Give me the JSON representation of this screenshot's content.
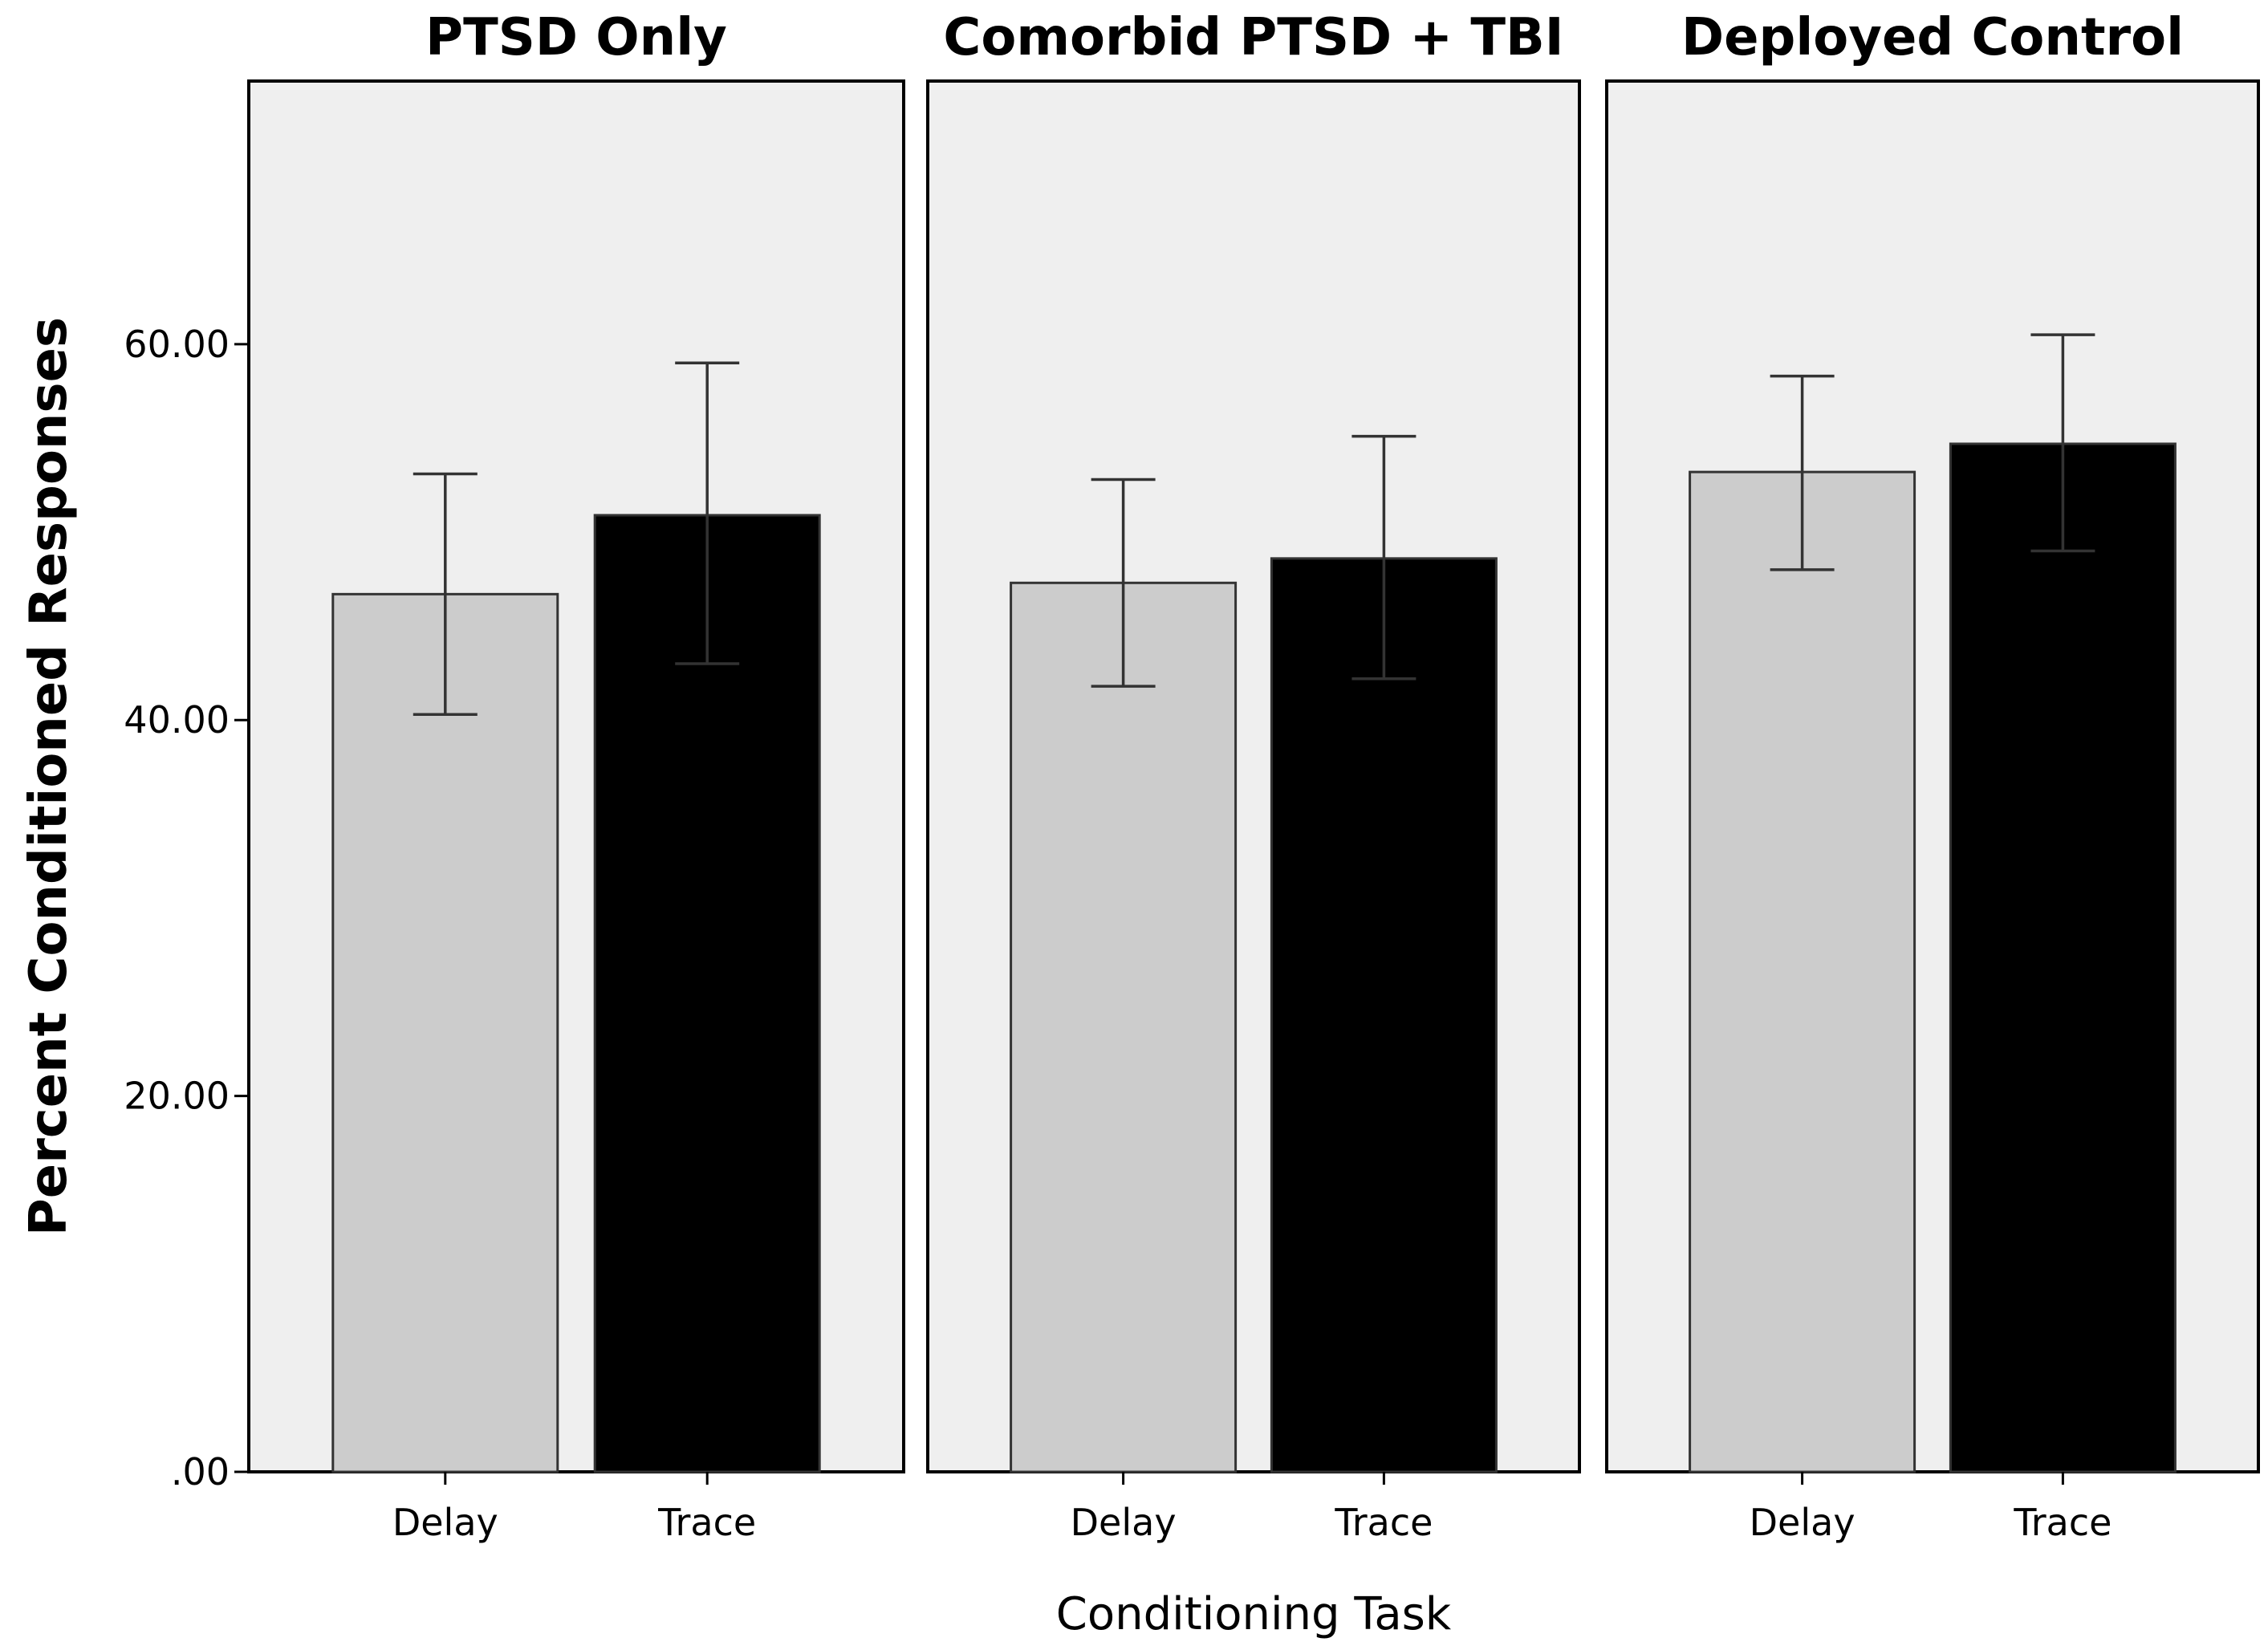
{
  "chart_data": {
    "type": "bar",
    "ylabel": "Percent Conditioned Responses",
    "xlabel": "Conditioning Task",
    "ylim": [
      0,
      74
    ],
    "yticks": [
      0,
      20,
      40,
      60
    ],
    "ytick_labels": [
      ".00",
      "20.00",
      "40.00",
      "60.00"
    ],
    "grid": false,
    "series_colors": {
      "Delay": "#cccccc",
      "Trace": "#000000"
    },
    "panel_background": "#efefef",
    "panels": [
      {
        "title": "PTSD Only",
        "categories": [
          "Delay",
          "Trace"
        ],
        "values": [
          46.7,
          50.9
        ],
        "error_low": [
          40.3,
          43.0
        ],
        "error_high": [
          53.1,
          59.0
        ]
      },
      {
        "title": "Comorbid PTSD + TBI",
        "categories": [
          "Delay",
          "Trace"
        ],
        "values": [
          47.3,
          48.6
        ],
        "error_low": [
          41.8,
          42.2
        ],
        "error_high": [
          52.8,
          55.1
        ]
      },
      {
        "title": "Deployed Control",
        "categories": [
          "Delay",
          "Trace"
        ],
        "values": [
          53.2,
          54.7
        ],
        "error_low": [
          48.0,
          49.0
        ],
        "error_high": [
          58.3,
          60.5
        ]
      }
    ]
  }
}
